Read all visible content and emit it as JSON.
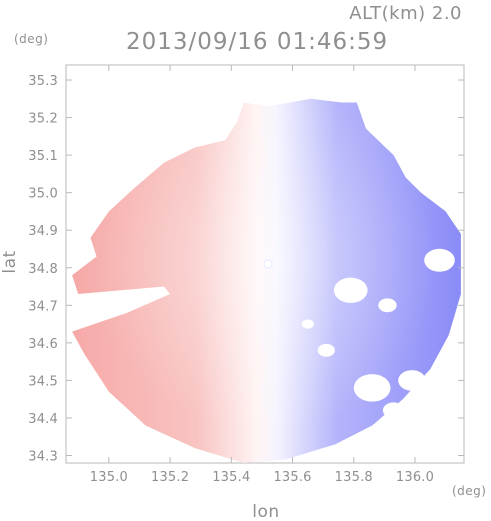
{
  "header": {
    "alt_label": "ALT(km) 2.0",
    "datetime": "2013/09/16 01:46:59",
    "y_unit": "(deg)",
    "x_unit": "(deg)"
  },
  "chart_data": {
    "type": "heatmap",
    "title": "2013/09/16 01:46:59",
    "subtitle": "ALT(km) 2.0",
    "xlabel": "lon",
    "ylabel": "lat",
    "x_unit": "(deg)",
    "y_unit": "(deg)",
    "xlim": [
      134.86,
      136.16
    ],
    "ylim": [
      34.28,
      35.34
    ],
    "x_ticks": [
      135.0,
      135.2,
      135.4,
      135.6,
      135.8,
      136.0
    ],
    "x_tick_labels": [
      "135.0",
      "135.2",
      "135.4",
      "135.6",
      "135.8",
      "136.0"
    ],
    "y_ticks": [
      34.3,
      34.4,
      34.5,
      34.6,
      34.7,
      34.8,
      34.9,
      35.0,
      35.1,
      35.2,
      35.3
    ],
    "y_tick_labels": [
      "34.3",
      "34.4",
      "34.5",
      "34.6",
      "34.7",
      "34.8",
      "34.9",
      "35.0",
      "35.1",
      "35.2",
      "35.3"
    ],
    "radar_center": {
      "lon": 135.52,
      "lat": 34.81
    },
    "coverage_boundary": [
      {
        "lon": 135.44,
        "lat": 35.24
      },
      {
        "lon": 135.52,
        "lat": 35.23
      },
      {
        "lon": 135.66,
        "lat": 35.25
      },
      {
        "lon": 135.76,
        "lat": 35.24
      },
      {
        "lon": 135.81,
        "lat": 35.24
      },
      {
        "lon": 135.84,
        "lat": 35.17
      },
      {
        "lon": 135.93,
        "lat": 35.1
      },
      {
        "lon": 135.97,
        "lat": 35.04
      },
      {
        "lon": 136.02,
        "lat": 35.0
      },
      {
        "lon": 136.1,
        "lat": 34.95
      },
      {
        "lon": 136.15,
        "lat": 34.89
      },
      {
        "lon": 136.15,
        "lat": 34.73
      },
      {
        "lon": 136.11,
        "lat": 34.62
      },
      {
        "lon": 136.05,
        "lat": 34.53
      },
      {
        "lon": 135.96,
        "lat": 34.45
      },
      {
        "lon": 135.86,
        "lat": 34.38
      },
      {
        "lon": 135.74,
        "lat": 34.33
      },
      {
        "lon": 135.58,
        "lat": 34.29
      },
      {
        "lon": 135.44,
        "lat": 34.28
      },
      {
        "lon": 135.28,
        "lat": 34.32
      },
      {
        "lon": 135.12,
        "lat": 34.38
      },
      {
        "lon": 135.0,
        "lat": 34.47
      },
      {
        "lon": 134.92,
        "lat": 34.57
      },
      {
        "lon": 134.88,
        "lat": 34.63
      },
      {
        "lon": 135.06,
        "lat": 34.68
      },
      {
        "lon": 135.2,
        "lat": 34.73
      },
      {
        "lon": 135.18,
        "lat": 34.75
      },
      {
        "lon": 134.9,
        "lat": 34.73
      },
      {
        "lon": 134.88,
        "lat": 34.78
      },
      {
        "lon": 134.96,
        "lat": 34.83
      },
      {
        "lon": 134.94,
        "lat": 34.88
      },
      {
        "lon": 135.0,
        "lat": 34.95
      },
      {
        "lon": 135.08,
        "lat": 35.01
      },
      {
        "lon": 135.18,
        "lat": 35.08
      },
      {
        "lon": 135.28,
        "lat": 35.12
      },
      {
        "lon": 135.38,
        "lat": 35.14
      },
      {
        "lon": 135.42,
        "lat": 35.19
      }
    ],
    "echo_gaps": [
      {
        "lon": 135.79,
        "lat": 34.74,
        "r": 0.055
      },
      {
        "lon": 135.91,
        "lat": 34.7,
        "r": 0.03
      },
      {
        "lon": 136.08,
        "lat": 34.82,
        "r": 0.05
      },
      {
        "lon": 135.86,
        "lat": 34.48,
        "r": 0.06
      },
      {
        "lon": 135.99,
        "lat": 34.5,
        "r": 0.045
      },
      {
        "lon": 135.93,
        "lat": 34.42,
        "r": 0.035
      },
      {
        "lon": 135.71,
        "lat": 34.58,
        "r": 0.028
      },
      {
        "lon": 135.65,
        "lat": 34.65,
        "r": 0.02
      }
    ],
    "color_scale": {
      "positive": "#f6aaa8",
      "zero": "#ffffff",
      "negative": "#8c8cf8"
    }
  }
}
